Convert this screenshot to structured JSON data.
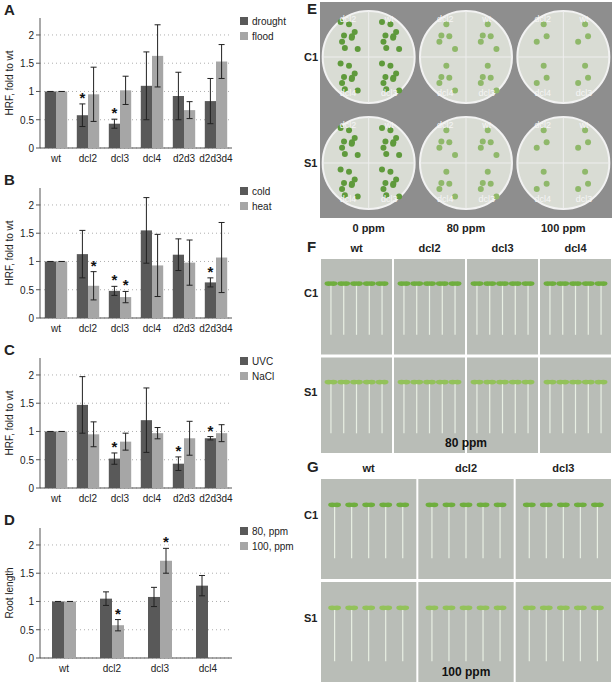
{
  "chart_data": [
    {
      "type": "bar",
      "title": "A",
      "y_label": "HRF, fold to wt",
      "categories": [
        "wt",
        "dcl2",
        "dcl3",
        "dcl4",
        "d2d3",
        "d2d3d4"
      ],
      "series": [
        {
          "name": "drought",
          "color": "#595959",
          "values": [
            1,
            0.58,
            0.43,
            1.1,
            0.92,
            0.83
          ],
          "errors": [
            0,
            0.2,
            0.08,
            0.6,
            0.42,
            0.4
          ]
        },
        {
          "name": "flood",
          "color": "#a6a6a6",
          "values": [
            1,
            0.95,
            1.02,
            1.63,
            0.67,
            1.53
          ],
          "errors": [
            0,
            0.48,
            0.25,
            0.55,
            0.15,
            0.3
          ]
        }
      ],
      "annotations": [
        {
          "text": "*",
          "series": 0,
          "index": 1
        },
        {
          "text": "*",
          "series": 0,
          "index": 2
        }
      ],
      "ylim": [
        0,
        2.3
      ],
      "yticks": [
        0,
        0.5,
        1,
        1.5,
        2
      ],
      "grid": true,
      "legend": "right"
    },
    {
      "type": "bar",
      "title": "B",
      "y_label": "HRF, fold to wt",
      "categories": [
        "wt",
        "dcl2",
        "dcl3",
        "dcl4",
        "d2d3",
        "d2d3d4"
      ],
      "series": [
        {
          "name": "cold",
          "color": "#595959",
          "values": [
            1,
            1.13,
            0.48,
            1.55,
            1.12,
            0.63
          ],
          "errors": [
            0,
            0.42,
            0.08,
            0.58,
            0.28,
            0.08
          ]
        },
        {
          "name": "heat",
          "color": "#a6a6a6",
          "values": [
            1,
            0.57,
            0.37,
            0.93,
            0.98,
            1.07
          ],
          "errors": [
            0,
            0.25,
            0.1,
            0.55,
            0.4,
            0.62
          ]
        }
      ],
      "annotations": [
        {
          "text": "*",
          "series": 1,
          "index": 1
        },
        {
          "text": "*",
          "series": 0,
          "index": 2
        },
        {
          "text": "*",
          "series": 1,
          "index": 2
        },
        {
          "text": "*",
          "series": 0,
          "index": 5
        }
      ],
      "ylim": [
        0,
        2.3
      ],
      "yticks": [
        0,
        0.5,
        1,
        1.5,
        2
      ],
      "grid": true,
      "legend": "right"
    },
    {
      "type": "bar",
      "title": "C",
      "y_label": "HRF, fold to wt",
      "categories": [
        "wt",
        "dcl2",
        "dcl3",
        "dcl4",
        "d2d3",
        "d2d3d4"
      ],
      "series": [
        {
          "name": "UVC",
          "color": "#595959",
          "values": [
            1,
            1.47,
            0.52,
            1.2,
            0.43,
            0.88
          ],
          "errors": [
            0,
            0.5,
            0.1,
            0.57,
            0.12,
            0.03
          ]
        },
        {
          "name": "NaCl",
          "color": "#a6a6a6",
          "values": [
            1,
            0.95,
            0.82,
            0.97,
            0.88,
            0.97
          ],
          "errors": [
            0,
            0.22,
            0.15,
            0.1,
            0.3,
            0.15
          ]
        }
      ],
      "annotations": [
        {
          "text": "*",
          "series": 0,
          "index": 2
        },
        {
          "text": "*",
          "series": 0,
          "index": 4
        },
        {
          "text": "*",
          "series": 0,
          "index": 5
        }
      ],
      "ylim": [
        0,
        2.3
      ],
      "yticks": [
        0,
        0.5,
        1,
        1.5,
        2
      ],
      "grid": true,
      "legend": "right"
    },
    {
      "type": "bar",
      "title": "D",
      "y_label": "Root length",
      "categories": [
        "wt",
        "dcl2",
        "dcl3",
        "dcl4"
      ],
      "series": [
        {
          "name": "80, ppm",
          "color": "#595959",
          "values": [
            1,
            1.05,
            1.08,
            1.28
          ],
          "errors": [
            0,
            0.12,
            0.17,
            0.18
          ]
        },
        {
          "name": "100, ppm",
          "color": "#a6a6a6",
          "values": [
            1,
            0.58,
            1.72,
            null
          ],
          "errors": [
            0,
            0.1,
            0.22,
            null
          ]
        }
      ],
      "annotations": [
        {
          "text": "*",
          "series": 1,
          "index": 1
        },
        {
          "text": "*",
          "series": 1,
          "index": 2
        }
      ],
      "ylim": [
        0,
        2.3
      ],
      "yticks": [
        0,
        0.5,
        1,
        1.5,
        2
      ],
      "grid": true,
      "legend": "right"
    }
  ],
  "photo_panels": {
    "E": {
      "label": "E",
      "rows": [
        "C1",
        "S1"
      ],
      "plate_labels": [
        "dcl2",
        "wt",
        "dcl4",
        "dcl3"
      ],
      "doses": [
        "0 ppm",
        "80 ppm",
        "100 ppm"
      ]
    },
    "F": {
      "label": "F",
      "rows": [
        "C1",
        "S1"
      ],
      "columns": [
        "wt",
        "dcl2",
        "dcl3",
        "dcl4"
      ],
      "dose": "80 ppm"
    },
    "G": {
      "label": "G",
      "rows": [
        "C1",
        "S1"
      ],
      "columns": [
        "wt",
        "dcl2",
        "dcl3"
      ],
      "dose": "100 ppm"
    }
  }
}
